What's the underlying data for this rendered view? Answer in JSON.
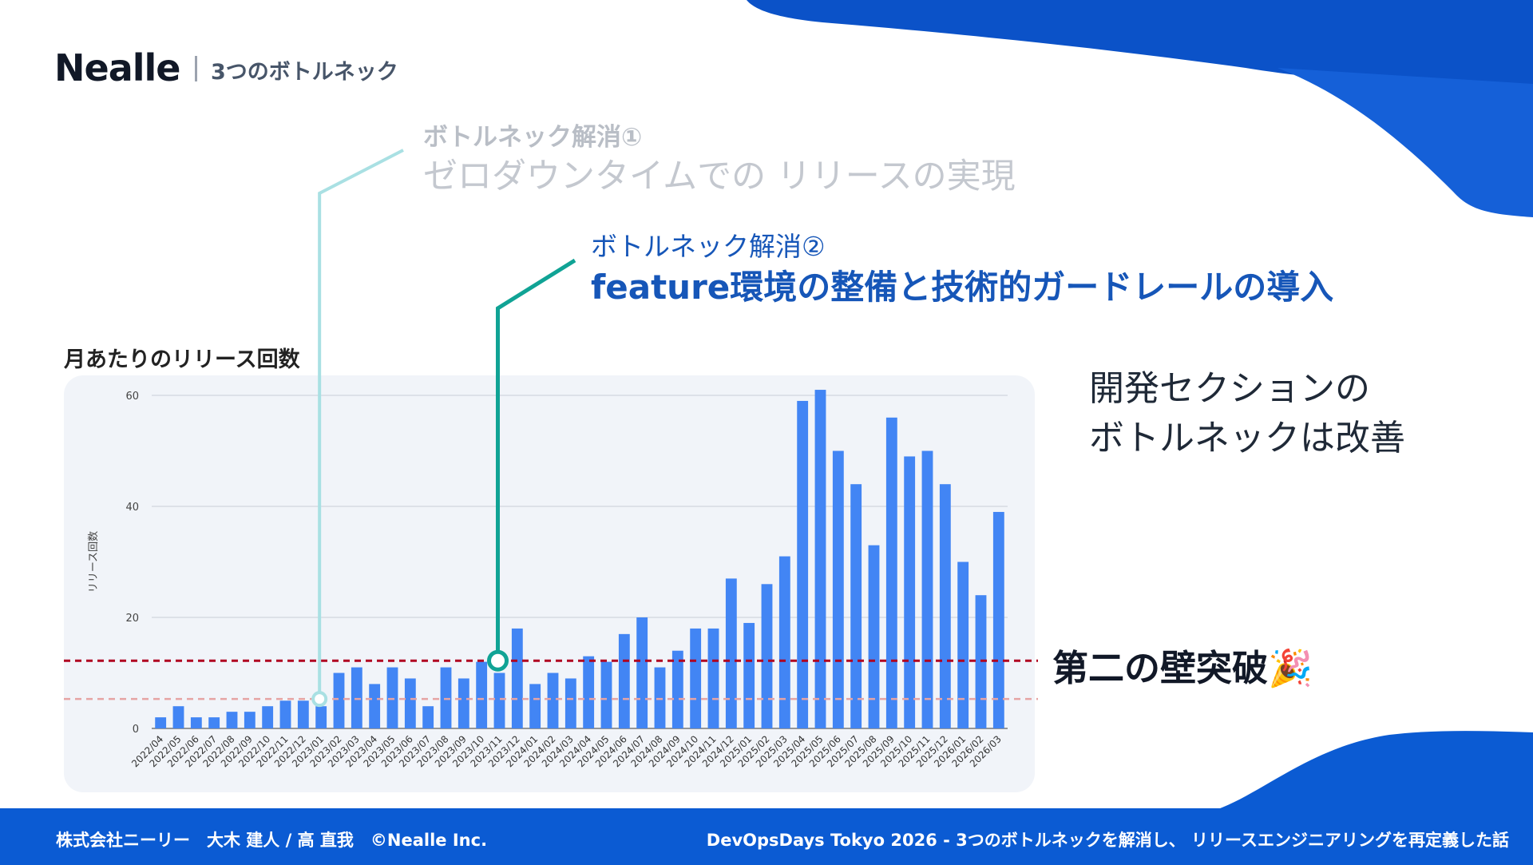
{
  "header": {
    "brand": "Nealle",
    "section": "3つのボトルネック"
  },
  "bottleneck1": {
    "label": "ボトルネック解消①",
    "title": "ゼロダウンタイムでの リリースの実現"
  },
  "bottleneck2": {
    "label": "ボトルネック解消②",
    "title": "feature環境の整備と技術的ガードレールの導入"
  },
  "chart_heading": "月あたりのリリース回数",
  "side_text": {
    "line1": "開発セクションの",
    "line2": "ボトルネックは改善"
  },
  "breakthrough": "第二の壁突破🎉",
  "footer": {
    "left": "株式会社ニーリー　大木 建人 / 高 直我　©Nealle Inc.",
    "right": "DevOpsDays Tokyo 2026 -  3つのボトルネックを解消し、 リリースエンジニアリングを再定義した話"
  },
  "colors": {
    "bar": "#4285f4",
    "brand_blue": "#0b5bd3",
    "accent_blue": "#1656b8",
    "marker1": "#a9e0e3",
    "marker2": "#10a395",
    "threshold_dark": "#b00020",
    "threshold_light": "#e6a4a4"
  },
  "chart_data": {
    "type": "bar",
    "ylabel": "リリース回数",
    "xlabel": "",
    "ylim": [
      0,
      60
    ],
    "yticks": [
      0,
      20,
      40,
      60
    ],
    "grid": true,
    "categories": [
      "2022/04",
      "2022/05",
      "2022/06",
      "2022/07",
      "2022/08",
      "2022/09",
      "2022/10",
      "2022/11",
      "2022/12",
      "2023/01",
      "2023/02",
      "2023/03",
      "2023/04",
      "2023/05",
      "2023/06",
      "2023/07",
      "2023/08",
      "2023/09",
      "2023/10",
      "2023/11",
      "2023/12",
      "2024/01",
      "2024/02",
      "2024/03",
      "2024/04",
      "2024/05",
      "2024/06",
      "2024/07",
      "2024/08",
      "2024/09",
      "2024/10",
      "2024/11",
      "2024/12",
      "2025/01",
      "2025/02",
      "2025/03",
      "2025/04",
      "2025/05",
      "2025/06",
      "2025/07",
      "2025/08",
      "2025/09",
      "2025/10",
      "2025/11",
      "2025/12",
      "2026/01",
      "2026/02",
      "2026/03"
    ],
    "values": [
      2,
      4,
      2,
      2,
      3,
      3,
      4,
      5,
      5,
      4,
      10,
      11,
      8,
      11,
      9,
      4,
      11,
      9,
      12,
      10,
      18,
      8,
      10,
      9,
      13,
      12,
      17,
      20,
      11,
      14,
      18,
      18,
      27,
      19,
      26,
      31,
      59,
      61,
      50,
      44,
      33,
      56,
      49,
      50,
      44,
      30,
      24,
      39
    ],
    "reference_lines": [
      {
        "value": 12.2,
        "style": "dashed",
        "color": "#b00020"
      },
      {
        "value": 5.3,
        "style": "dashed",
        "color": "#e6a4a4"
      }
    ],
    "markers": [
      {
        "category": "2023/01",
        "value": 5.3,
        "note": "ボトルネック解消①"
      },
      {
        "category": "2023/11",
        "value": 12.2,
        "note": "ボトルネック解消②"
      }
    ]
  }
}
